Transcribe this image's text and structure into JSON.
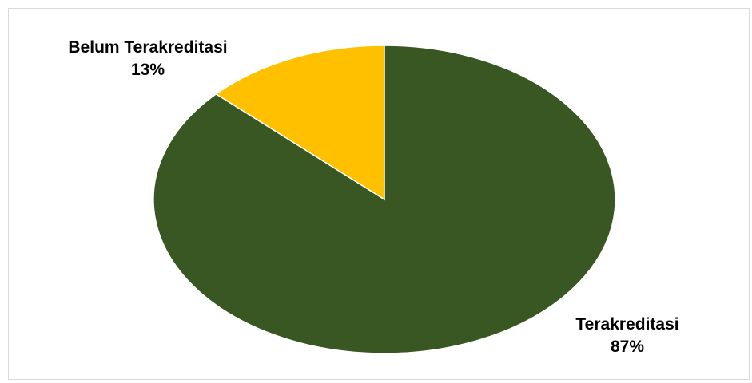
{
  "chart_data": {
    "type": "pie",
    "title": "",
    "categories": [
      "Belum Terakreditasi",
      "Terakreditasi"
    ],
    "values": [
      13,
      87
    ],
    "unit": "%",
    "colors": [
      "#ffc000",
      "#385723"
    ],
    "legend": "none",
    "data_labels": [
      {
        "category": "Belum Terakreditasi",
        "value": "13%"
      },
      {
        "category": "Terakreditasi",
        "value": "87%"
      }
    ]
  }
}
